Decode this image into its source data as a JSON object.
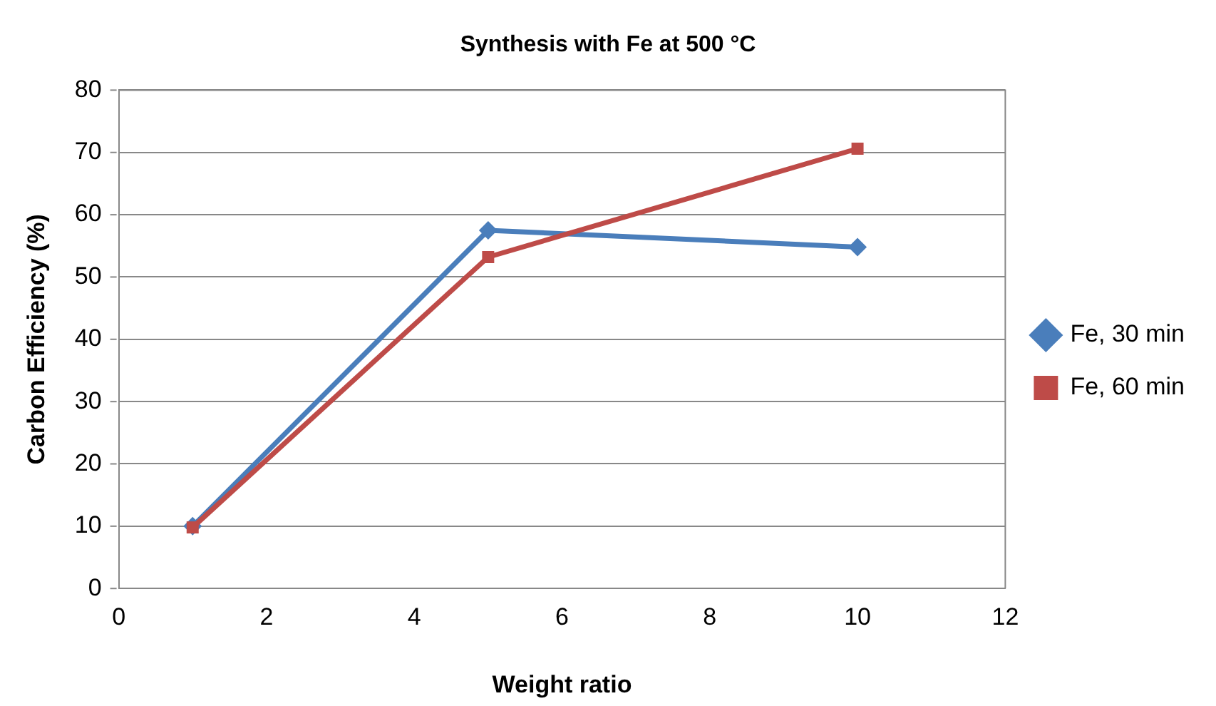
{
  "chart_data": {
    "type": "line",
    "title": "Synthesis with Fe at 500 °C",
    "xlabel": "Weight ratio",
    "ylabel": "Carbon Efficiency (%)",
    "x": [
      1,
      5,
      10
    ],
    "series": [
      {
        "name": "Fe, 30 min",
        "color": "#4a7ebb",
        "values": [
          10,
          57.5,
          54.8
        ],
        "marker": "diamond"
      },
      {
        "name": "Fe, 60 min",
        "color": "#be4b48",
        "values": [
          9.8,
          53.2,
          70.6
        ],
        "marker": "square"
      }
    ],
    "xlim": [
      0,
      12
    ],
    "xticks": [
      0,
      2,
      4,
      6,
      8,
      10,
      12
    ],
    "ylim": [
      0,
      80
    ],
    "yticks": [
      0,
      10,
      20,
      30,
      40,
      50,
      60,
      70,
      80
    ],
    "grid": "y",
    "legend": "right",
    "line_style": "solid"
  }
}
